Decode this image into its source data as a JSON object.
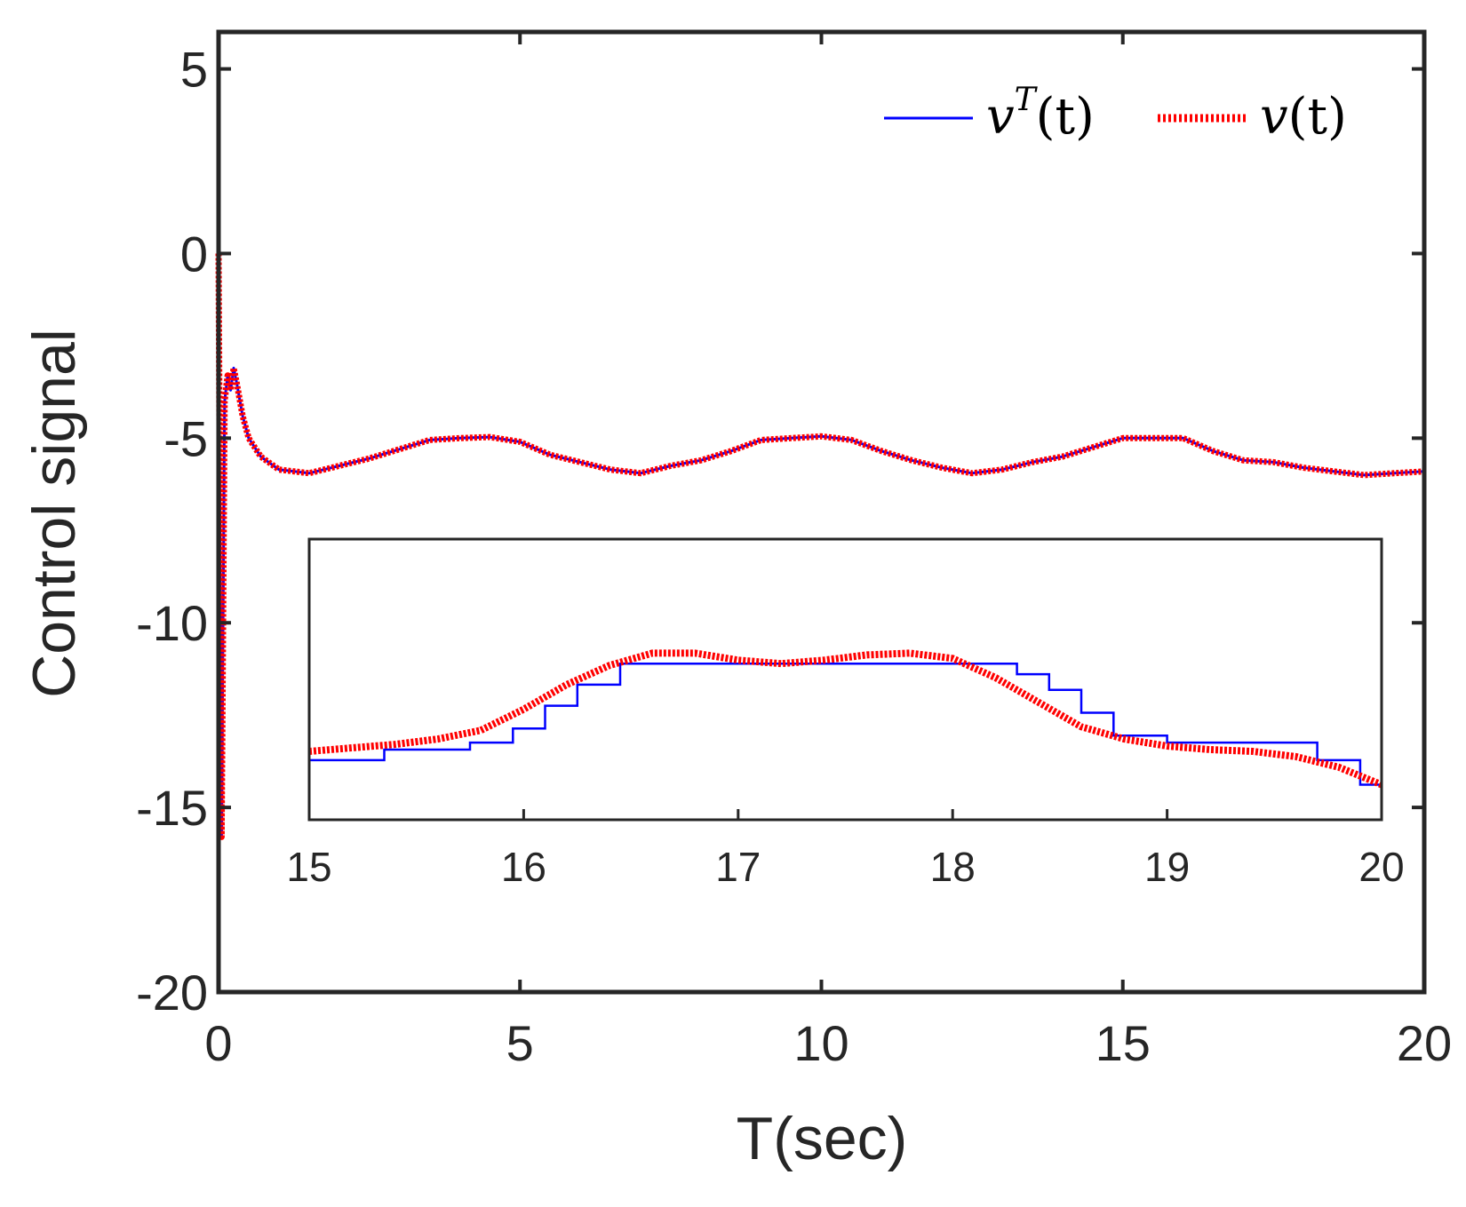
{
  "chart_data": [
    {
      "id": "main",
      "type": "line",
      "title": "",
      "xlabel": "T(sec)",
      "ylabel": "Control signal",
      "xlim": [
        0,
        20
      ],
      "ylim": [
        -20,
        6
      ],
      "xticks": [
        0,
        5,
        10,
        15,
        20
      ],
      "yticks": [
        5,
        0,
        -5,
        -10,
        -15,
        -20
      ],
      "xtick_labels": [
        "0",
        "5",
        "10",
        "15",
        "20"
      ],
      "ytick_labels": [
        "5",
        "0",
        "-5",
        "-10",
        "-15",
        "-20"
      ],
      "grid": false,
      "legend_position": "top-right",
      "series": [
        {
          "name": "v^T(t)",
          "label_base": "v",
          "label_sup": "T",
          "label_arg": "(t)",
          "style": "solid",
          "color": "#0000ff",
          "x": [
            0,
            0.05,
            0.1,
            0.15,
            0.2,
            0.25,
            0.3,
            0.4,
            0.5,
            0.7,
            1.0,
            1.5,
            2.0,
            2.5,
            3.0,
            3.5,
            4.0,
            4.5,
            5.0,
            5.5,
            6.0,
            6.5,
            7.0,
            7.5,
            8.0,
            8.5,
            9.0,
            9.5,
            10.0,
            10.5,
            11.0,
            11.5,
            12.0,
            12.5,
            13.0,
            13.5,
            14.0,
            14.5,
            15.0,
            15.5,
            16.0,
            16.5,
            17.0,
            17.5,
            18.0,
            18.5,
            19.0,
            19.5,
            20.0
          ],
          "y": [
            0,
            -15.8,
            -4.0,
            -3.3,
            -3.7,
            -3.1,
            -3.5,
            -4.4,
            -5.0,
            -5.5,
            -5.85,
            -5.95,
            -5.75,
            -5.55,
            -5.3,
            -5.05,
            -5.0,
            -4.97,
            -5.1,
            -5.45,
            -5.65,
            -5.85,
            -5.95,
            -5.75,
            -5.6,
            -5.35,
            -5.05,
            -5.0,
            -4.95,
            -5.05,
            -5.35,
            -5.6,
            -5.8,
            -5.95,
            -5.85,
            -5.65,
            -5.5,
            -5.25,
            -5.0,
            -5.0,
            -5.0,
            -5.35,
            -5.6,
            -5.65,
            -5.8,
            -5.9,
            -6.0,
            -5.95,
            -5.9
          ]
        },
        {
          "name": "v(t)",
          "label_base": "v",
          "label_sup": "",
          "label_arg": "(t)",
          "style": "dotted",
          "color": "#ff0000",
          "x": [
            0,
            0.05,
            0.1,
            0.15,
            0.2,
            0.25,
            0.3,
            0.4,
            0.5,
            0.7,
            1.0,
            1.5,
            2.0,
            2.5,
            3.0,
            3.5,
            4.0,
            4.5,
            5.0,
            5.5,
            6.0,
            6.5,
            7.0,
            7.5,
            8.0,
            8.5,
            9.0,
            9.5,
            10.0,
            10.5,
            11.0,
            11.5,
            12.0,
            12.5,
            13.0,
            13.5,
            14.0,
            14.5,
            15.0,
            15.5,
            16.0,
            16.5,
            17.0,
            17.5,
            18.0,
            18.5,
            19.0,
            19.5,
            20.0
          ],
          "y": [
            0,
            -15.8,
            -4.0,
            -3.3,
            -3.7,
            -3.1,
            -3.5,
            -4.4,
            -5.0,
            -5.5,
            -5.85,
            -5.95,
            -5.75,
            -5.55,
            -5.3,
            -5.05,
            -5.0,
            -4.97,
            -5.1,
            -5.45,
            -5.65,
            -5.85,
            -5.95,
            -5.75,
            -5.6,
            -5.35,
            -5.05,
            -5.0,
            -4.95,
            -5.05,
            -5.35,
            -5.6,
            -5.8,
            -5.95,
            -5.85,
            -5.65,
            -5.5,
            -5.25,
            -5.0,
            -5.0,
            -5.0,
            -5.35,
            -5.6,
            -5.65,
            -5.8,
            -5.9,
            -6.0,
            -5.95,
            -5.9
          ]
        }
      ]
    },
    {
      "id": "inset",
      "type": "line",
      "title": "",
      "xlabel": "",
      "ylabel": "",
      "xlim": [
        15,
        20
      ],
      "ylim": [
        -6.3,
        -4.7
      ],
      "xticks": [
        15,
        16,
        17,
        18,
        19,
        20
      ],
      "xtick_labels": [
        "15",
        "16",
        "17",
        "18",
        "19",
        "20"
      ],
      "grid": false,
      "series": [
        {
          "name": "v^T(t)",
          "style": "step",
          "color": "#0000ff",
          "x": [
            15.0,
            15.35,
            15.75,
            15.95,
            16.1,
            16.25,
            16.45,
            18.3,
            18.45,
            18.6,
            18.75,
            19.0,
            19.7,
            19.9
          ],
          "y": [
            -5.96,
            -5.9,
            -5.86,
            -5.78,
            -5.65,
            -5.53,
            -5.41,
            -5.47,
            -5.56,
            -5.69,
            -5.82,
            -5.86,
            -5.96,
            -6.1
          ]
        },
        {
          "name": "v(t)",
          "style": "dotted",
          "color": "#ff0000",
          "x": [
            15.0,
            15.2,
            15.4,
            15.6,
            15.8,
            16.0,
            16.2,
            16.4,
            16.6,
            16.8,
            17.0,
            17.2,
            17.4,
            17.6,
            17.8,
            18.0,
            18.2,
            18.4,
            18.6,
            18.8,
            19.0,
            19.2,
            19.4,
            19.6,
            19.8,
            20.0
          ],
          "y": [
            -5.91,
            -5.89,
            -5.87,
            -5.84,
            -5.79,
            -5.67,
            -5.53,
            -5.42,
            -5.35,
            -5.35,
            -5.39,
            -5.41,
            -5.39,
            -5.36,
            -5.35,
            -5.38,
            -5.49,
            -5.63,
            -5.77,
            -5.84,
            -5.88,
            -5.9,
            -5.91,
            -5.94,
            -6.0,
            -6.1
          ]
        }
      ]
    }
  ]
}
